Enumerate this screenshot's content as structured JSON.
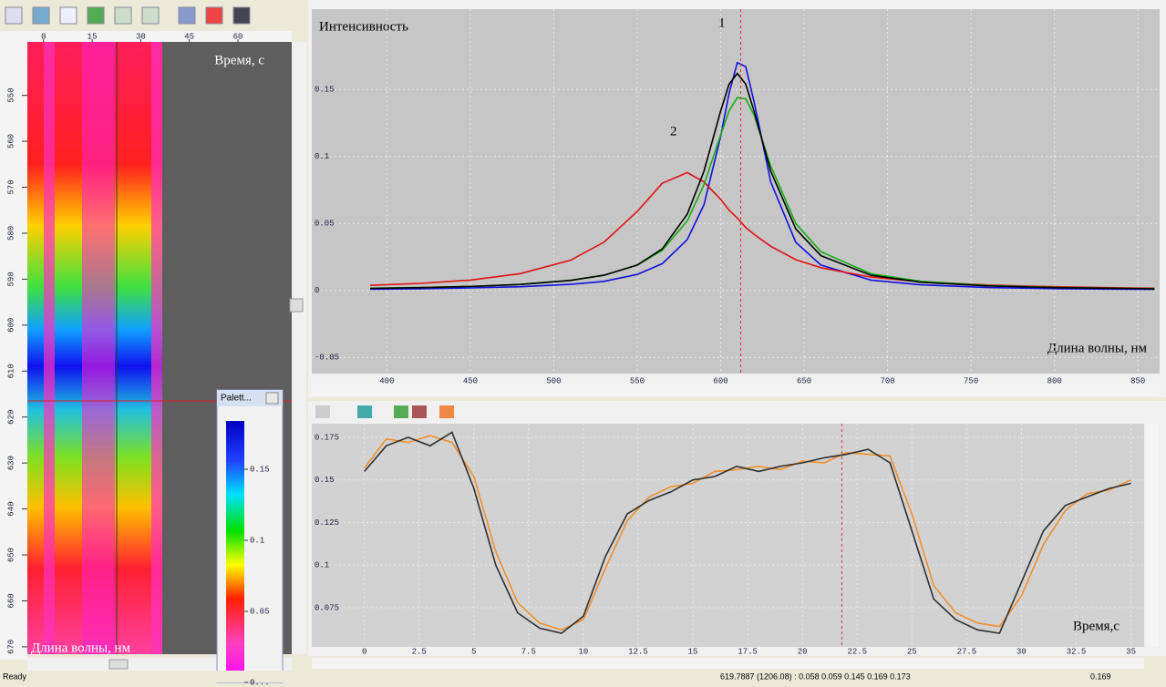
{
  "chart_data": [
    {
      "type": "line",
      "y_label": "Интенсивность",
      "x_label": "Длина волны, нм",
      "annotations": [
        "1",
        "2"
      ],
      "x": [
        390,
        420,
        450,
        480,
        510,
        530,
        550,
        565,
        580,
        590,
        600,
        605,
        610,
        615,
        620,
        630,
        645,
        660,
        690,
        720,
        760,
        800,
        840,
        860
      ],
      "series": [
        {
          "color": "#1010e0",
          "values": [
            0.001,
            0.0013,
            0.0019,
            0.0028,
            0.0046,
            0.0068,
            0.012,
            0.02,
            0.038,
            0.064,
            0.115,
            0.147,
            0.17,
            0.167,
            0.141,
            0.081,
            0.036,
            0.019,
            0.0078,
            0.0042,
            0.0022,
            0.0014,
            0.001,
            0.0008
          ]
        },
        {
          "color": "#e01010",
          "values": [
            0.0038,
            0.0053,
            0.0078,
            0.0126,
            0.0226,
            0.036,
            0.059,
            0.08,
            0.088,
            0.081,
            0.068,
            0.06,
            0.054,
            0.047,
            0.042,
            0.033,
            0.023,
            0.017,
            0.01,
            0.0065,
            0.0041,
            0.0028,
            0.002,
            0.0017
          ]
        },
        {
          "color": "#10b010",
          "values": [
            0.0017,
            0.0022,
            0.003,
            0.0045,
            0.0076,
            0.0114,
            0.0189,
            0.03,
            0.052,
            0.079,
            0.116,
            0.134,
            0.144,
            0.143,
            0.131,
            0.093,
            0.05,
            0.029,
            0.0125,
            0.0068,
            0.0037,
            0.0023,
            0.0016,
            0.0014
          ]
        },
        {
          "color": "#000000",
          "values": [
            0.0016,
            0.0021,
            0.003,
            0.0045,
            0.0075,
            0.0114,
            0.019,
            0.031,
            0.057,
            0.089,
            0.134,
            0.154,
            0.162,
            0.154,
            0.134,
            0.089,
            0.046,
            0.026,
            0.0114,
            0.0062,
            0.0034,
            0.0021,
            0.0015,
            0.0012
          ]
        }
      ],
      "xlim": [
        355,
        863
      ],
      "ylim": [
        -0.062,
        0.21
      ],
      "xticks": [
        400,
        450,
        500,
        550,
        600,
        650,
        700,
        750,
        800,
        850
      ],
      "yticks": [
        -0.05,
        0,
        0.05,
        0.1,
        0.15
      ],
      "cursor": 612,
      "grid": true
    },
    {
      "type": "line",
      "x_label": "Время,с",
      "x": [
        0,
        1,
        2,
        3,
        4,
        5,
        6,
        7,
        8,
        9,
        10,
        11,
        12,
        13,
        14,
        15,
        16,
        17,
        18,
        19,
        20,
        21,
        22,
        23,
        24,
        25,
        26,
        27,
        28,
        29,
        30,
        31,
        32,
        33,
        34,
        35
      ],
      "series": [
        {
          "color": "#f0902a",
          "values": [
            0.157,
            0.174,
            0.172,
            0.176,
            0.172,
            0.152,
            0.108,
            0.078,
            0.066,
            0.062,
            0.068,
            0.098,
            0.126,
            0.14,
            0.146,
            0.148,
            0.155,
            0.156,
            0.158,
            0.156,
            0.161,
            0.16,
            0.166,
            0.165,
            0.164,
            0.13,
            0.088,
            0.072,
            0.066,
            0.064,
            0.082,
            0.112,
            0.132,
            0.142,
            0.144,
            0.15
          ]
        },
        {
          "color": "#303030",
          "values": [
            0.155,
            0.17,
            0.175,
            0.17,
            0.178,
            0.145,
            0.1,
            0.072,
            0.063,
            0.06,
            0.07,
            0.105,
            0.13,
            0.138,
            0.143,
            0.15,
            0.152,
            0.158,
            0.155,
            0.158,
            0.16,
            0.163,
            0.165,
            0.168,
            0.16,
            0.12,
            0.08,
            0.068,
            0.062,
            0.06,
            0.09,
            0.12,
            0.135,
            0.14,
            0.145,
            0.148
          ]
        }
      ],
      "xlim": [
        -2.4,
        35.6
      ],
      "ylim": [
        0.052,
        0.183
      ],
      "xticks": [
        0,
        2.5,
        5,
        7.5,
        10,
        12.5,
        15,
        17.5,
        20,
        22.5,
        25,
        27.5,
        30,
        32.5,
        35
      ],
      "yticks": [
        0.075,
        0.1,
        0.125,
        0.15,
        0.175
      ],
      "cursor": 21.8,
      "grid": true
    }
  ],
  "heatmap": {
    "x_label": "Время, с",
    "y_label": "Длина волны, нм",
    "xticks": [
      0,
      15,
      30,
      45,
      60
    ],
    "yticks": [
      550,
      560,
      570,
      580,
      590,
      600,
      610,
      620,
      630,
      640,
      650,
      660,
      670
    ],
    "xlim": [
      -5,
      76.6
    ],
    "ylim": [
      536,
      672
    ]
  },
  "palette": {
    "title": "Palett...",
    "lim": [
      0,
      0.184
    ],
    "ticks": [
      0.15,
      0.1,
      0.05,
      {
        "value": 0,
        "label": "0..."
      }
    ]
  },
  "status_bar": {
    "state": "Ready",
    "readout": "619.7887 (1206.08) : 0.058 0.059 0.145 0.169 0.173",
    "value": "0.169"
  }
}
